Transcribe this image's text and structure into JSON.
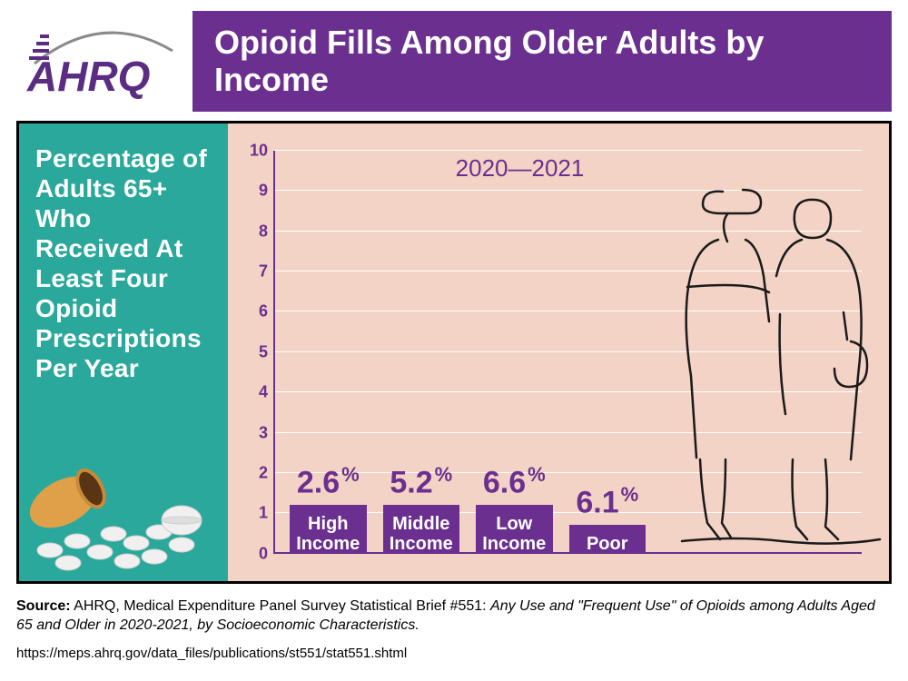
{
  "logo": {
    "text": "AHRQ",
    "color": "#5a2d82",
    "arc_color": "#8a8a8a"
  },
  "title": "Opioid Fills Among Older Adults by Income",
  "title_bar_color": "#6b2f8f",
  "side_panel": {
    "text": "Percentage of Adults 65+ Who Received At Least Four Opioid Prescriptions Per Year",
    "bg_color": "#2aa89b",
    "text_color": "#ffffff"
  },
  "chart": {
    "type": "bar",
    "timeframe": "2020—2021",
    "background_color": "#f3d3c5",
    "bar_color": "#6b2f8f",
    "gridline_color": "#ffffff",
    "axis_color": "#6b2f8f",
    "tick_color": "#6b2f8f",
    "value_color": "#6b2f8f",
    "bar_label_color": "#ffffff",
    "ylim": [
      0,
      10
    ],
    "ytick_step": 1,
    "yticks": [
      0,
      1,
      2,
      3,
      4,
      5,
      6,
      7,
      8,
      9,
      10
    ],
    "value_suffix": "%",
    "value_fontsize": 34,
    "label_fontsize": 20,
    "tick_fontsize": 18,
    "bars": [
      {
        "label": "High Income",
        "value": 2.6,
        "display": "2.6"
      },
      {
        "label": "Middle Income",
        "value": 5.2,
        "display": "5.2"
      },
      {
        "label": "Low Income",
        "value": 6.6,
        "display": "6.6"
      },
      {
        "label": "Poor",
        "value": 6.1,
        "display": "6.1"
      }
    ]
  },
  "illustration": {
    "pills_icon": "pill-bottle-spill",
    "people_icon": "elderly-couple-line-art",
    "line_color": "#1a1a1a"
  },
  "source": {
    "label": "Source:",
    "text_plain": " AHRQ, Medical Expenditure Panel Survey Statistical Brief #551: ",
    "text_italic": "Any Use and \"Frequent Use\" of Opioids among Adults Aged 65 and Older in 2020-2021, by Socioeconomic Characteristics.",
    "url": "https://meps.ahrq.gov/data_files/publications/st551/stat551.shtml"
  }
}
